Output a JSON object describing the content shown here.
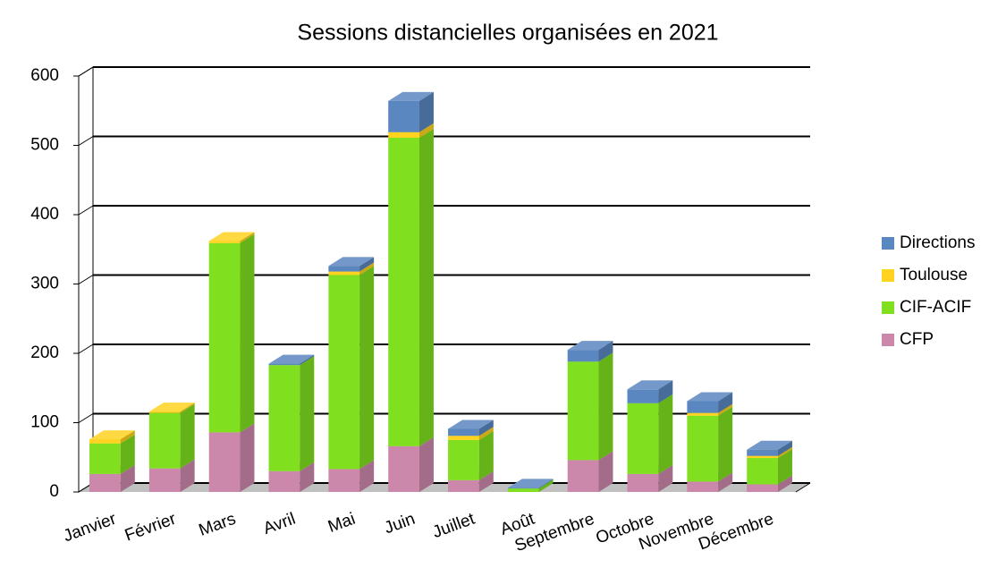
{
  "chart_data": {
    "type": "bar3d_stacked",
    "title": "Sessions distancielles organisées en 2021",
    "categories": [
      "Janvier",
      "Février",
      "Mars",
      "Avril",
      "Mai",
      "Juin",
      "Juillet",
      "Août",
      "Septembre",
      "Octobre",
      "Novembre",
      "Décembre"
    ],
    "series": [
      {
        "name": "CFP",
        "color": "#cc88aa",
        "values": [
          26,
          34,
          86,
          30,
          33,
          66,
          17,
          0,
          46,
          26,
          15,
          11
        ]
      },
      {
        "name": "CIF-ACIF",
        "color": "#80e020",
        "values": [
          44,
          80,
          273,
          153,
          280,
          445,
          58,
          5,
          142,
          102,
          95,
          38
        ]
      },
      {
        "name": "Toulouse",
        "color": "#ffd320",
        "values": [
          6,
          2,
          3,
          0,
          5,
          8,
          6,
          0,
          0,
          0,
          4,
          3
        ]
      },
      {
        "name": "Directions",
        "color": "#5b87c0",
        "values": [
          0,
          0,
          0,
          2,
          8,
          45,
          10,
          1,
          17,
          20,
          17,
          9
        ]
      }
    ],
    "ylim": [
      0,
      600
    ],
    "yticks": [
      0,
      100,
      200,
      300,
      400,
      500,
      600
    ],
    "grid": true,
    "legend": "right"
  }
}
